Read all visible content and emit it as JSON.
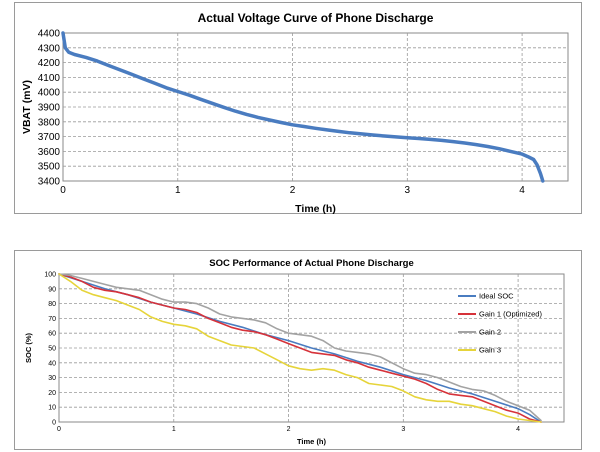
{
  "chart_data": [
    {
      "type": "line",
      "title": "Actual Voltage Curve of Phone Discharge",
      "xlabel": "Time (h)",
      "ylabel": "VBAT (mV)",
      "xlim": [
        0,
        4.4
      ],
      "ylim": [
        3400,
        4400
      ],
      "x_ticks": [
        0,
        1,
        2,
        3,
        4
      ],
      "y_ticks": [
        3400,
        3500,
        3600,
        3700,
        3800,
        3900,
        4000,
        4100,
        4200,
        4300,
        4400
      ],
      "grid": true,
      "legend": "none",
      "series": [
        {
          "color": "#4a7cc0",
          "x": [
            0,
            0.02,
            0.05,
            0.1,
            0.2,
            0.3,
            0.4,
            0.5,
            0.6,
            0.7,
            0.8,
            0.9,
            1.0,
            1.1,
            1.2,
            1.3,
            1.4,
            1.5,
            1.6,
            1.7,
            1.8,
            1.9,
            2.0,
            2.1,
            2.2,
            2.3,
            2.4,
            2.5,
            2.6,
            2.7,
            2.8,
            2.9,
            3.0,
            3.1,
            3.2,
            3.3,
            3.4,
            3.5,
            3.6,
            3.7,
            3.8,
            3.9,
            4.0,
            4.05,
            4.1,
            4.13,
            4.16,
            4.18
          ],
          "y": [
            4400,
            4300,
            4270,
            4255,
            4235,
            4210,
            4180,
            4150,
            4120,
            4090,
            4060,
            4030,
            4005,
            3980,
            3952,
            3925,
            3898,
            3872,
            3850,
            3830,
            3812,
            3795,
            3780,
            3768,
            3756,
            3745,
            3735,
            3726,
            3718,
            3711,
            3704,
            3698,
            3692,
            3687,
            3681,
            3674,
            3666,
            3657,
            3646,
            3633,
            3618,
            3600,
            3582,
            3565,
            3545,
            3510,
            3450,
            3400
          ]
        }
      ]
    },
    {
      "type": "line",
      "title": "SOC Performance of Actual Phone Discharge",
      "xlabel": "Time (h)",
      "ylabel": "SOC (%)",
      "xlim": [
        0,
        4.4
      ],
      "ylim": [
        0,
        100
      ],
      "x_ticks": [
        0,
        1,
        2,
        3,
        4
      ],
      "y_ticks": [
        0,
        10,
        20,
        30,
        40,
        50,
        60,
        70,
        80,
        90,
        100
      ],
      "grid": true,
      "legend": "right",
      "series": [
        {
          "name": "Ideal SOC",
          "color": "#4a7cc0",
          "x": [
            0,
            0.2,
            0.4,
            0.6,
            0.8,
            1.0,
            1.2,
            1.4,
            1.6,
            1.8,
            2.0,
            2.2,
            2.4,
            2.6,
            2.8,
            3.0,
            3.2,
            3.4,
            3.6,
            3.8,
            4.0,
            4.1,
            4.2
          ],
          "y": [
            100,
            95,
            90,
            86,
            81,
            77,
            73,
            68,
            64,
            59,
            55,
            50,
            46,
            41,
            37,
            32,
            28,
            23,
            19,
            14,
            9,
            5,
            0
          ]
        },
        {
          "name": "Gain 1 (Optimized)",
          "color": "#d6323a",
          "x": [
            0,
            0.1,
            0.2,
            0.3,
            0.4,
            0.5,
            0.6,
            0.7,
            0.8,
            0.9,
            1.0,
            1.1,
            1.2,
            1.3,
            1.4,
            1.5,
            1.6,
            1.7,
            1.8,
            1.9,
            2.0,
            2.1,
            2.2,
            2.3,
            2.4,
            2.5,
            2.6,
            2.7,
            2.8,
            2.9,
            3.0,
            3.1,
            3.2,
            3.3,
            3.4,
            3.5,
            3.6,
            3.7,
            3.8,
            3.9,
            4.0,
            4.1,
            4.2
          ],
          "y": [
            100,
            98,
            95,
            91,
            89,
            88,
            86,
            84,
            81,
            79,
            77,
            76,
            74,
            70,
            67,
            64,
            62,
            61,
            59,
            56,
            53,
            50,
            47,
            46,
            45,
            42,
            40,
            37,
            35,
            33,
            31,
            29,
            26,
            22,
            19,
            18,
            17,
            14,
            11,
            8,
            6,
            2,
            0
          ]
        },
        {
          "name": "Gain 2",
          "color": "#a3a3a3",
          "x": [
            0,
            0.1,
            0.2,
            0.3,
            0.4,
            0.5,
            0.6,
            0.7,
            0.8,
            0.9,
            1.0,
            1.1,
            1.2,
            1.3,
            1.4,
            1.5,
            1.6,
            1.7,
            1.8,
            1.9,
            2.0,
            2.1,
            2.2,
            2.3,
            2.4,
            2.5,
            2.6,
            2.7,
            2.8,
            2.9,
            3.0,
            3.1,
            3.2,
            3.3,
            3.4,
            3.5,
            3.6,
            3.7,
            3.8,
            3.9,
            4.0,
            4.1,
            4.2
          ],
          "y": [
            100,
            99,
            97,
            95,
            93,
            91,
            90,
            89,
            86,
            83,
            81,
            81,
            80,
            77,
            73,
            71,
            70,
            69,
            67,
            63,
            60,
            59,
            58,
            55,
            50,
            48,
            47,
            46,
            44,
            40,
            36,
            33,
            32,
            30,
            27,
            24,
            22,
            21,
            18,
            14,
            11,
            8,
            1
          ]
        },
        {
          "name": "Gain 3",
          "color": "#e6d43a",
          "x": [
            0,
            0.1,
            0.2,
            0.3,
            0.4,
            0.5,
            0.6,
            0.7,
            0.8,
            0.9,
            1.0,
            1.1,
            1.2,
            1.3,
            1.4,
            1.5,
            1.6,
            1.7,
            1.8,
            1.9,
            2.0,
            2.1,
            2.2,
            2.3,
            2.4,
            2.5,
            2.6,
            2.7,
            2.8,
            2.9,
            3.0,
            3.1,
            3.2,
            3.3,
            3.4,
            3.5,
            3.6,
            3.7,
            3.8,
            3.9,
            4.0,
            4.1,
            4.2
          ],
          "y": [
            100,
            95,
            89,
            86,
            84,
            82,
            79,
            76,
            71,
            68,
            66,
            65,
            63,
            58,
            55,
            52,
            51,
            50,
            46,
            42,
            38,
            36,
            35,
            36,
            35,
            32,
            30,
            26,
            25,
            24,
            21,
            17,
            15,
            14,
            14,
            12,
            11,
            9,
            7,
            4,
            2,
            1,
            0
          ]
        }
      ]
    }
  ]
}
